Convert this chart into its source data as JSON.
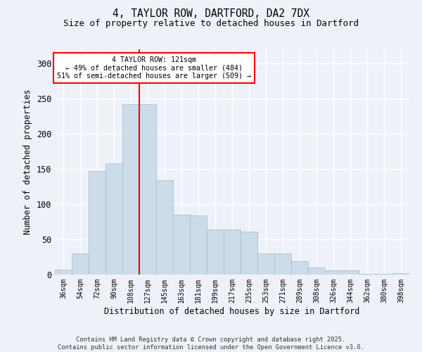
{
  "title1": "4, TAYLOR ROW, DARTFORD, DA2 7DX",
  "title2": "Size of property relative to detached houses in Dartford",
  "xlabel": "Distribution of detached houses by size in Dartford",
  "ylabel": "Number of detached properties",
  "bar_labels": [
    "36sqm",
    "54sqm",
    "72sqm",
    "90sqm",
    "108sqm",
    "127sqm",
    "145sqm",
    "163sqm",
    "181sqm",
    "199sqm",
    "217sqm",
    "235sqm",
    "253sqm",
    "271sqm",
    "289sqm",
    "308sqm",
    "326sqm",
    "344sqm",
    "362sqm",
    "380sqm",
    "398sqm"
  ],
  "bar_values": [
    7,
    30,
    147,
    158,
    242,
    242,
    134,
    85,
    84,
    64,
    64,
    61,
    30,
    30,
    19,
    10,
    6,
    6,
    1,
    1,
    2
  ],
  "bar_color": "#ccdce8",
  "bar_edge_color": "#a8c0d0",
  "annotation_text_line1": "4 TAYLOR ROW: 121sqm",
  "annotation_text_line2": "← 49% of detached houses are smaller (484)",
  "annotation_text_line3": "51% of semi-detached houses are larger (509) →",
  "annotation_box_facecolor": "white",
  "annotation_box_edgecolor": "red",
  "vline_color": "red",
  "vline_x_index": 4.5,
  "ylim": [
    0,
    320
  ],
  "yticks": [
    0,
    50,
    100,
    150,
    200,
    250,
    300
  ],
  "background_color": "#eef2f8",
  "grid_color": "white",
  "footer_line1": "Contains HM Land Registry data © Crown copyright and database right 2025.",
  "footer_line2": "Contains public sector information licensed under the Open Government Licence v3.0."
}
